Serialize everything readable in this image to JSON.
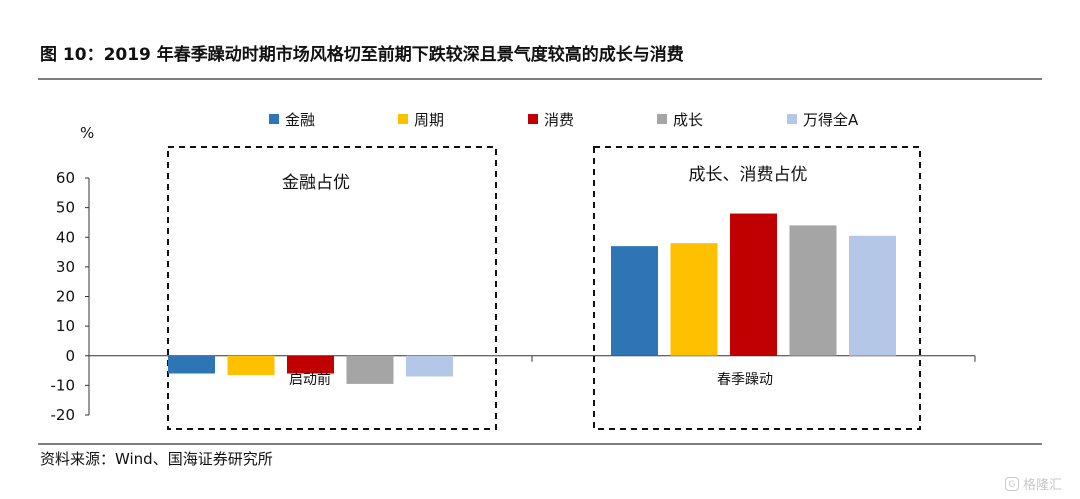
{
  "title": "图 10：2019 年春季躁动时期市场风格切至前期下跌较深且景气度较高的成长与消费",
  "source": "资料来源：Wind、国海证券研究所",
  "watermark": "格隆汇",
  "chart_data": {
    "type": "bar",
    "ylabel": "%",
    "ylim": [
      -20,
      60
    ],
    "yticks": [
      -20,
      -10,
      0,
      10,
      20,
      30,
      40,
      50,
      60
    ],
    "categories": [
      "启动前",
      "春季躁动"
    ],
    "series": [
      {
        "name": "金融",
        "color": "#2e75b6",
        "values": [
          -6,
          37
        ]
      },
      {
        "name": "周期",
        "color": "#ffc000",
        "values": [
          -6.5,
          38
        ]
      },
      {
        "name": "消费",
        "color": "#c00000",
        "values": [
          -6,
          48
        ]
      },
      {
        "name": "成长",
        "color": "#a5a5a5",
        "values": [
          -9.5,
          44
        ]
      },
      {
        "name": "万得全A",
        "color": "#b4c7e7",
        "values": [
          -7,
          40.5
        ]
      }
    ],
    "annotations": [
      "金融占优",
      "成长、消费占优"
    ],
    "legend": "top",
    "grid": false
  }
}
